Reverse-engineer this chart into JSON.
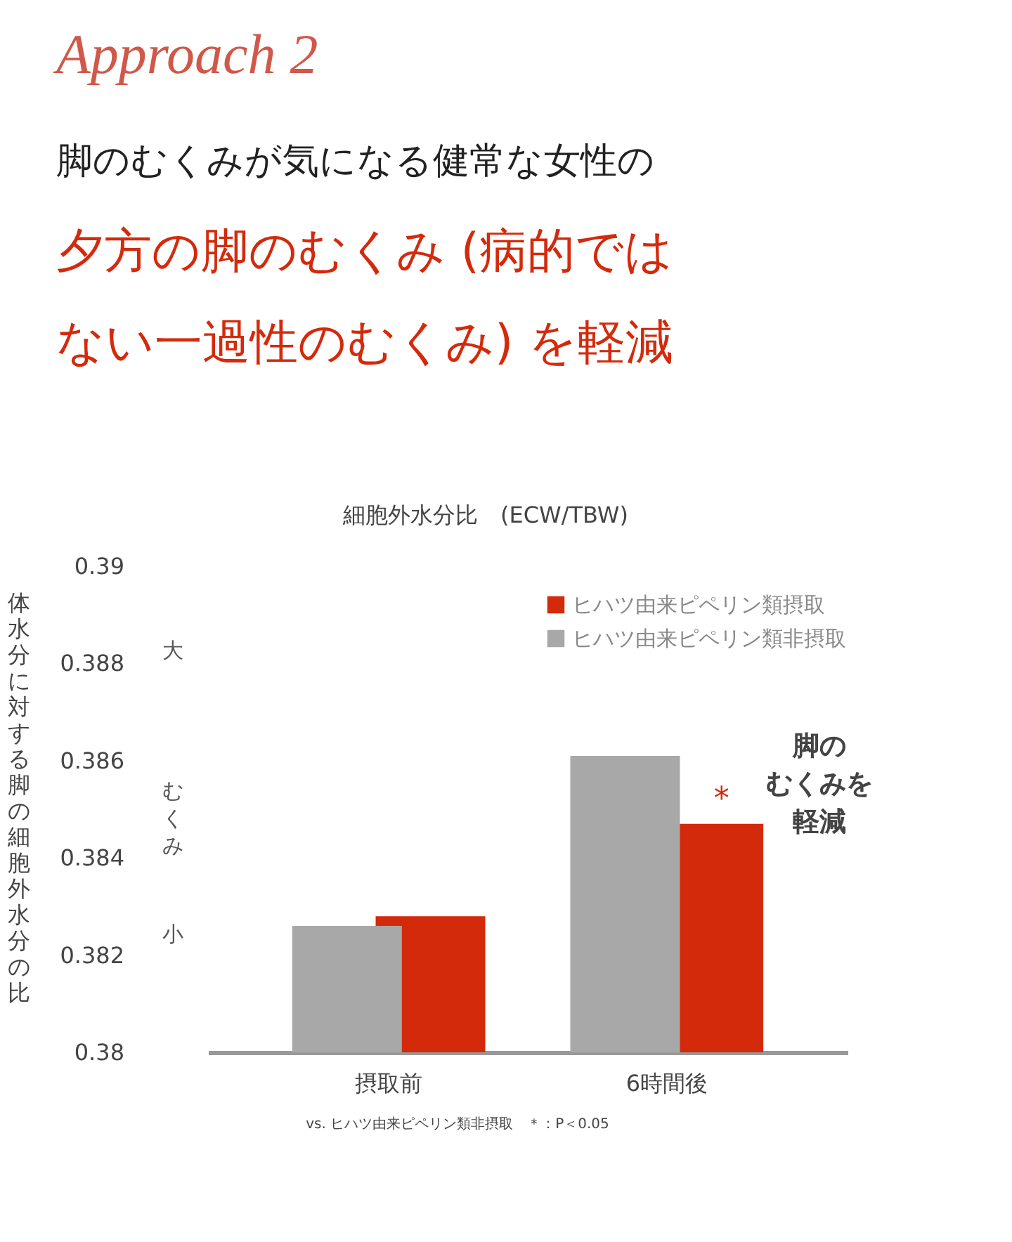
{
  "chart_data": {
    "type": "bar",
    "title": "脚のむくみが気になる健常な女性の",
    "subtitle": "夕方の脚のむくみ (病的では",
    "ylabel": "体水分に対する脚の細胞外水分の比",
    "categories": [
      "摂取前",
      "6時間後"
    ],
    "series": [
      {
        "name": "ヒハツ由来ピペリン類摂取",
        "color": "#d42a0c",
        "values": [
          0.3828,
          0.3847
        ]
      },
      {
        "name": "ヒハツ由来ピペリン類非摂取",
        "color": "#a8a8a8",
        "values": [
          0.3826,
          0.3861
        ]
      }
    ],
    "ylim": [
      0.38,
      0.39
    ],
    "yticks": [
      0.38,
      0.382,
      0.384,
      0.386,
      0.388,
      0.39
    ],
    "grid": false,
    "legend": "top right",
    "annotations": [
      "Approach 2",
      "細胞外水分比　(ECW/TBW)",
      "大",
      "むくみ",
      "小",
      "脚の",
      "むくみを",
      "軽減",
      {
        "text": "*",
        "x": "6時間後",
        "y": 0.3847
      },
      "vs. ヒハツ由来ピペリン類非摂取　＊：P＜0.05",
      "ない一過性のむくみ) を軽減"
    ]
  }
}
